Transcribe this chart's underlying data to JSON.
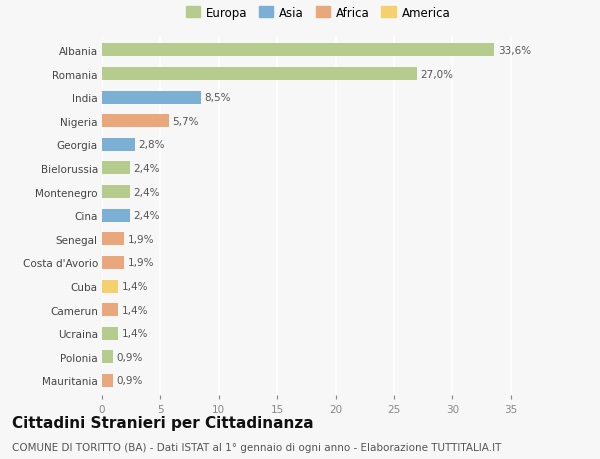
{
  "categories": [
    "Albania",
    "Romania",
    "India",
    "Nigeria",
    "Georgia",
    "Bielorussia",
    "Montenegro",
    "Cina",
    "Senegal",
    "Costa d'Avorio",
    "Cuba",
    "Camerun",
    "Ucraina",
    "Polonia",
    "Mauritania"
  ],
  "values": [
    33.6,
    27.0,
    8.5,
    5.7,
    2.8,
    2.4,
    2.4,
    2.4,
    1.9,
    1.9,
    1.4,
    1.4,
    1.4,
    0.9,
    0.9
  ],
  "labels": [
    "33,6%",
    "27,0%",
    "8,5%",
    "5,7%",
    "2,8%",
    "2,4%",
    "2,4%",
    "2,4%",
    "1,9%",
    "1,9%",
    "1,4%",
    "1,4%",
    "1,4%",
    "0,9%",
    "0,9%"
  ],
  "continents": [
    "Europa",
    "Europa",
    "Asia",
    "Africa",
    "Asia",
    "Europa",
    "Europa",
    "Asia",
    "Africa",
    "Africa",
    "America",
    "Africa",
    "Europa",
    "Europa",
    "Africa"
  ],
  "colors": {
    "Europa": "#b5cc8e",
    "Asia": "#7bafd4",
    "Africa": "#e8a87c",
    "America": "#f5d06e"
  },
  "legend_order": [
    "Europa",
    "Asia",
    "Africa",
    "America"
  ],
  "bg_color": "#f7f7f7",
  "grid_color": "#ffffff",
  "xlim": [
    0,
    37
  ],
  "xticks": [
    0,
    5,
    10,
    15,
    20,
    25,
    30,
    35
  ],
  "title": "Cittadini Stranieri per Cittadinanza",
  "subtitle": "COMUNE DI TORITTO (BA) - Dati ISTAT al 1° gennaio di ogni anno - Elaborazione TUTTITALIA.IT",
  "title_fontsize": 11,
  "subtitle_fontsize": 7.5,
  "label_fontsize": 7.5,
  "tick_fontsize": 7.5,
  "legend_fontsize": 8.5
}
